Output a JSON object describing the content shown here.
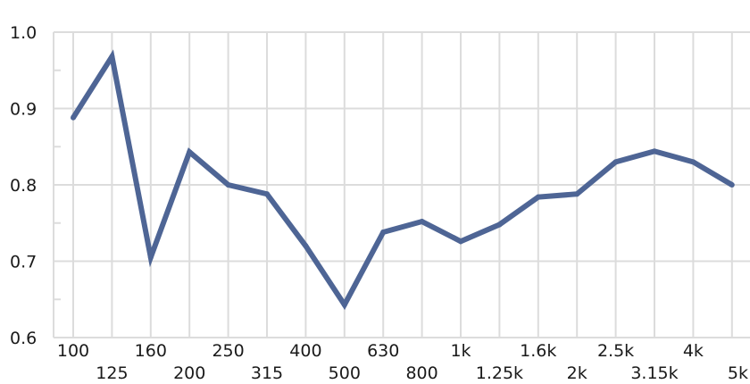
{
  "chart_data": {
    "type": "line",
    "title": "",
    "xlabel": "",
    "ylabel": "",
    "x": [
      "100",
      "125",
      "160",
      "200",
      "250",
      "315",
      "400",
      "500",
      "630",
      "800",
      "1k",
      "1.25k",
      "1.6k",
      "2k",
      "2.5k",
      "3.15k",
      "4k",
      "5k"
    ],
    "series": [
      {
        "values": [
          0.888,
          0.968,
          0.705,
          0.843,
          0.8,
          0.788,
          0.72,
          0.643,
          0.738,
          0.752,
          0.726,
          0.748,
          0.784,
          0.788,
          0.83,
          0.844,
          0.83,
          0.8
        ]
      }
    ],
    "ylim": [
      0.6,
      1.0
    ],
    "y_ticks": [
      "0.6",
      "0.7",
      "0.8",
      "0.9",
      "1.0"
    ],
    "grid": true,
    "legend": "none",
    "colors": {
      "line": "#4e6595",
      "grid": "#dcdcdc",
      "text": "#1a1a1a"
    }
  }
}
